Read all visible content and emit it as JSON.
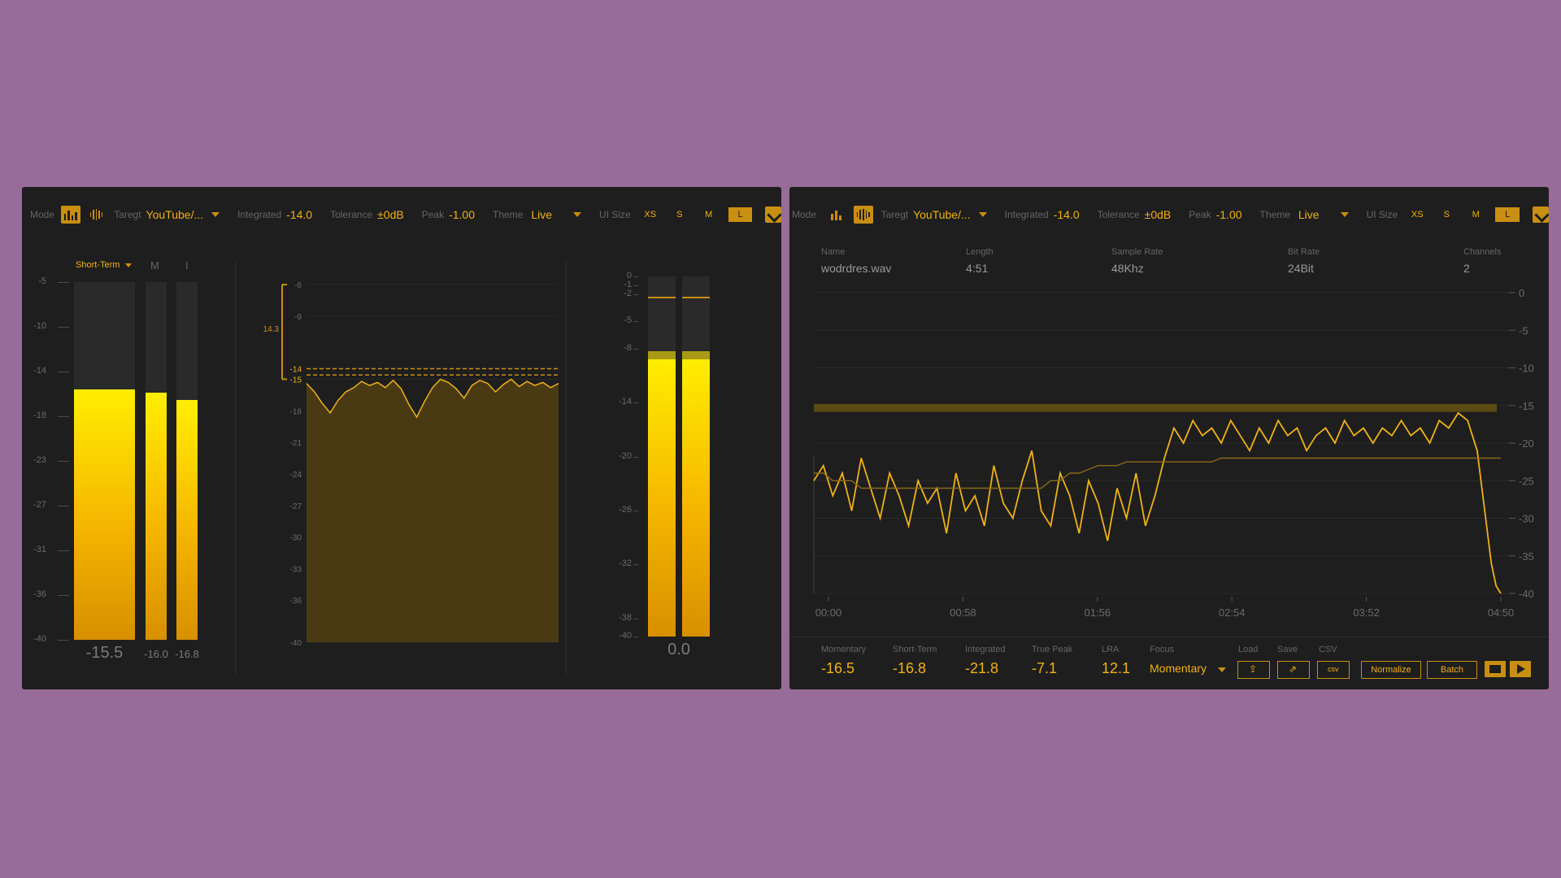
{
  "colors": {
    "background": "#986c98",
    "panel": "#1e1e1e",
    "accent": "#f0b216",
    "accent_dark": "#c98f12"
  },
  "toolbar": {
    "mode_label": "Mode",
    "target_label": "Taregt",
    "target_value": "YouTube/...",
    "integrated_label": "Integrated",
    "integrated_value": "-14.0",
    "tolerance_label": "Tolerance",
    "tolerance_value": "±0dB",
    "peak_label": "Peak",
    "peak_value": "-1.00",
    "theme_label": "Theme",
    "theme_value": "Live",
    "ui_size_label": "UI Size",
    "sizes": [
      "XS",
      "S",
      "M",
      "L"
    ],
    "active_size": "L",
    "icons": [
      "meter-mode-icon",
      "waveform-mode-icon",
      "pin-icon"
    ]
  },
  "live_panel": {
    "meter_selector": "Short-Term",
    "meter_m_label": "M",
    "meter_i_label": "I",
    "left_scale": [
      "-5",
      "-10",
      "-14",
      "-18",
      "-23",
      "-27",
      "-31",
      "-36",
      "-40"
    ],
    "meters": [
      {
        "name": "short-term",
        "readout": "-15.5",
        "level": 0.7
      },
      {
        "name": "momentary",
        "readout": "-16.0",
        "level": 0.69
      },
      {
        "name": "integrated",
        "readout": "-16.8",
        "level": 0.67
      }
    ],
    "history_scale": [
      "-6",
      "-9",
      "-14",
      "-15",
      "-18",
      "-21",
      "-24",
      "-27",
      "-30",
      "-33",
      "-36",
      "-40"
    ],
    "history_range_label": "14.3",
    "history_curve": [
      -15.4,
      -16.2,
      -17.3,
      -18.2,
      -17.0,
      -16.2,
      -15.8,
      -15.2,
      -15.6,
      -15.3,
      -15.8,
      -15.1,
      -15.9,
      -17.4,
      -18.6,
      -17.1,
      -15.8,
      -15.0,
      -15.3,
      -15.9,
      -16.8,
      -15.6,
      -15.1,
      -15.4,
      -16.2,
      -15.5,
      -15.0,
      -15.7,
      -15.2,
      -15.6,
      -15.3,
      -15.8,
      -15.4
    ],
    "peak_scale": [
      "0",
      "-1",
      "-2",
      "-5",
      "-8",
      "-14",
      "-20",
      "-26",
      "-32",
      "-38",
      "-40"
    ],
    "peak_meters": [
      {
        "name": "peak-left",
        "level": 0.77,
        "hold": 0.94
      },
      {
        "name": "peak-right",
        "level": 0.77,
        "hold": 0.94
      }
    ],
    "peak_readout": "0.0"
  },
  "file_panel": {
    "info": {
      "name_label": "Name",
      "name_value": "wodrdres.wav",
      "length_label": "Length",
      "length_value": "4:51",
      "sample_rate_label": "Sample Rate",
      "sample_rate_value": "48Khz",
      "bit_rate_label": "Bit Rate",
      "bit_rate_value": "24Bit",
      "channels_label": "Channels",
      "channels_value": "2"
    },
    "y_scale": [
      "0",
      "-5",
      "-10",
      "-15",
      "-20",
      "-25",
      "-30",
      "-35",
      "-40"
    ],
    "x_scale": [
      "00:00",
      "00:58",
      "01:56",
      "02:54",
      "03:52",
      "04:50"
    ],
    "stats": [
      {
        "label": "Momentary",
        "value": "-16.5"
      },
      {
        "label": "Short-Term",
        "value": "-16.8"
      },
      {
        "label": "Integrated",
        "value": "-21.8"
      },
      {
        "label": "True Peak",
        "value": "-7.1"
      },
      {
        "label": "LRA",
        "value": "12.1"
      }
    ],
    "focus_label": "Focus",
    "focus_value": "Momentary",
    "load_label": "Load",
    "save_label": "Save",
    "csv_label": "CSV",
    "csv_icon_text": "csv",
    "normalize_label": "Normalize",
    "batch_label": "Batch"
  },
  "chart_data": {
    "type": "line",
    "x": [
      0,
      4,
      8,
      12,
      16,
      20,
      24,
      28,
      32,
      36,
      40,
      44,
      48,
      52,
      56,
      60,
      64,
      68,
      72,
      76,
      80,
      84,
      88,
      92,
      96,
      100,
      104,
      108,
      112,
      116,
      120,
      124,
      128,
      132,
      136,
      140,
      144,
      148,
      152,
      156,
      160,
      164,
      168,
      172,
      176,
      180,
      184,
      188,
      192,
      196,
      200,
      204,
      208,
      212,
      216,
      220,
      224,
      228,
      232,
      236,
      240,
      244,
      248,
      252,
      256,
      260,
      264,
      268,
      272,
      276,
      278,
      280,
      282,
      284,
      286,
      288,
      290
    ],
    "series": [
      {
        "values": [
          -25,
          -23,
          -27,
          -24,
          -29,
          -22,
          -26,
          -30,
          -24,
          -27,
          -31,
          -25,
          -28,
          -26,
          -32,
          -24,
          -29,
          -27,
          -31,
          -23,
          -28,
          -30,
          -25,
          -21,
          -29,
          -31,
          -24,
          -27,
          -32,
          -25,
          -28,
          -33,
          -26,
          -30,
          -24,
          -31,
          -27,
          -22,
          -18,
          -20,
          -17,
          -19,
          -18,
          -20,
          -17,
          -19,
          -21,
          -18,
          -20,
          -17,
          -19,
          -18,
          -21,
          -19,
          -18,
          -20,
          -17,
          -19,
          -18,
          -20,
          -18,
          -19,
          -17,
          -19,
          -18,
          -20,
          -17,
          -18,
          -16,
          -17,
          -19,
          -21,
          -26,
          -31,
          -36,
          -39,
          -40
        ]
      },
      {
        "values": [
          -24,
          -24,
          -25,
          -25,
          -25,
          -26,
          -26,
          -26,
          -26,
          -26,
          -26,
          -26,
          -26,
          -26,
          -26,
          -26,
          -26,
          -26,
          -26,
          -26,
          -26,
          -26,
          -26,
          -26,
          -26,
          -25,
          -25,
          -24,
          -24,
          -23.5,
          -23,
          -23,
          -23,
          -22.5,
          -22.5,
          -22.5,
          -22.5,
          -22.5,
          -22.5,
          -22.5,
          -22.5,
          -22.5,
          -22.5,
          -22,
          -22,
          -22,
          -22,
          -22,
          -22,
          -22,
          -22,
          -22,
          -22,
          -22,
          -22,
          -22,
          -22,
          -22,
          -22,
          -22,
          -22,
          -22,
          -22,
          -22,
          -22,
          -22,
          -22,
          -22,
          -22,
          -22,
          -22,
          -22,
          -22,
          -22,
          -22,
          -22,
          -22
        ]
      }
    ],
    "target_band": [
      -14.8,
      -15.2
    ],
    "ylim": [
      -40,
      0
    ],
    "xlim": [
      0,
      290
    ]
  }
}
